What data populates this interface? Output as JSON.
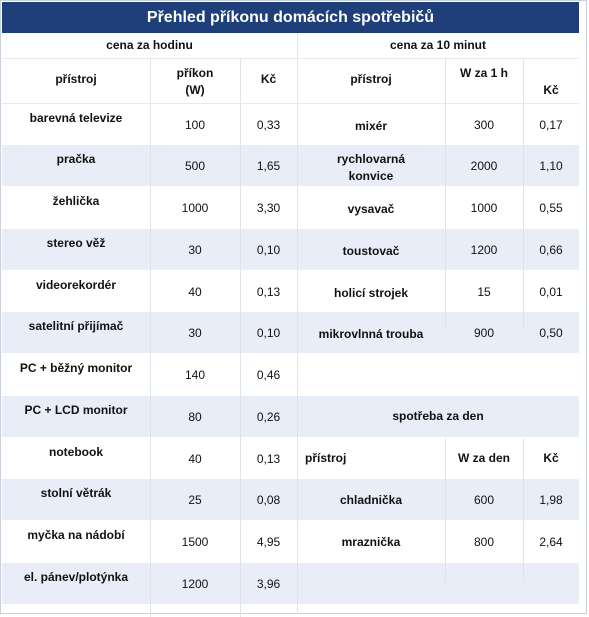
{
  "title": "Přehled příkonu domácích spotřebičů",
  "left": {
    "section": "cena za hodinu",
    "headers": {
      "device": "přístroj",
      "power": "příkon\n(W)",
      "price": "Kč"
    },
    "rows": [
      {
        "device": "barevná televize",
        "power": "100",
        "price": "0,33"
      },
      {
        "device": "pračka",
        "power": "500",
        "price": "1,65"
      },
      {
        "device": "žehlička",
        "power": "1000",
        "price": "3,30"
      },
      {
        "device": "stereo věž",
        "power": "30",
        "price": "0,10"
      },
      {
        "device": "videorekordér",
        "power": "40",
        "price": "0,13"
      },
      {
        "device": "satelitní přijímač",
        "power": "30",
        "price": "0,10"
      },
      {
        "device": "PC + běžný monitor",
        "power": "140",
        "price": "0,46"
      },
      {
        "device": "PC + LCD monitor",
        "power": "80",
        "price": "0,26"
      },
      {
        "device": "notebook",
        "power": "40",
        "price": "0,13"
      },
      {
        "device": "stolní větrák",
        "power": "25",
        "price": "0,08"
      },
      {
        "device": "myčka na nádobí",
        "power": "1500",
        "price": "4,95"
      },
      {
        "device": "el. pánev/plotýnka",
        "power": "1200",
        "price": "3,96"
      }
    ]
  },
  "right": {
    "section": "cena za 10 minut",
    "headers": {
      "device": "přístroj",
      "power": "W za 1 h",
      "price": "Kč"
    },
    "rows": [
      {
        "device": "mixér",
        "power": "300",
        "price": "0,17"
      },
      {
        "device": "rychlovarná\nkonvice",
        "power": "2000",
        "price": "1,10"
      },
      {
        "device": "vysavač",
        "power": "1000",
        "price": "0,55"
      },
      {
        "device": "toustovač",
        "power": "1200",
        "price": "0,66"
      },
      {
        "device": "holicí strojek",
        "power": "15",
        "price": "0,01"
      },
      {
        "device": "mikrovlnná trouba",
        "power": "900",
        "price": "0,50"
      }
    ],
    "daily": {
      "section": "spotřeba za den",
      "headers": {
        "device": "přístroj",
        "power": "W za den",
        "price": "Kč"
      },
      "rows": [
        {
          "device": "chladnička",
          "power": "600",
          "price": "1,98"
        },
        {
          "device": "mraznička",
          "power": "800",
          "price": "2,64"
        }
      ]
    }
  }
}
